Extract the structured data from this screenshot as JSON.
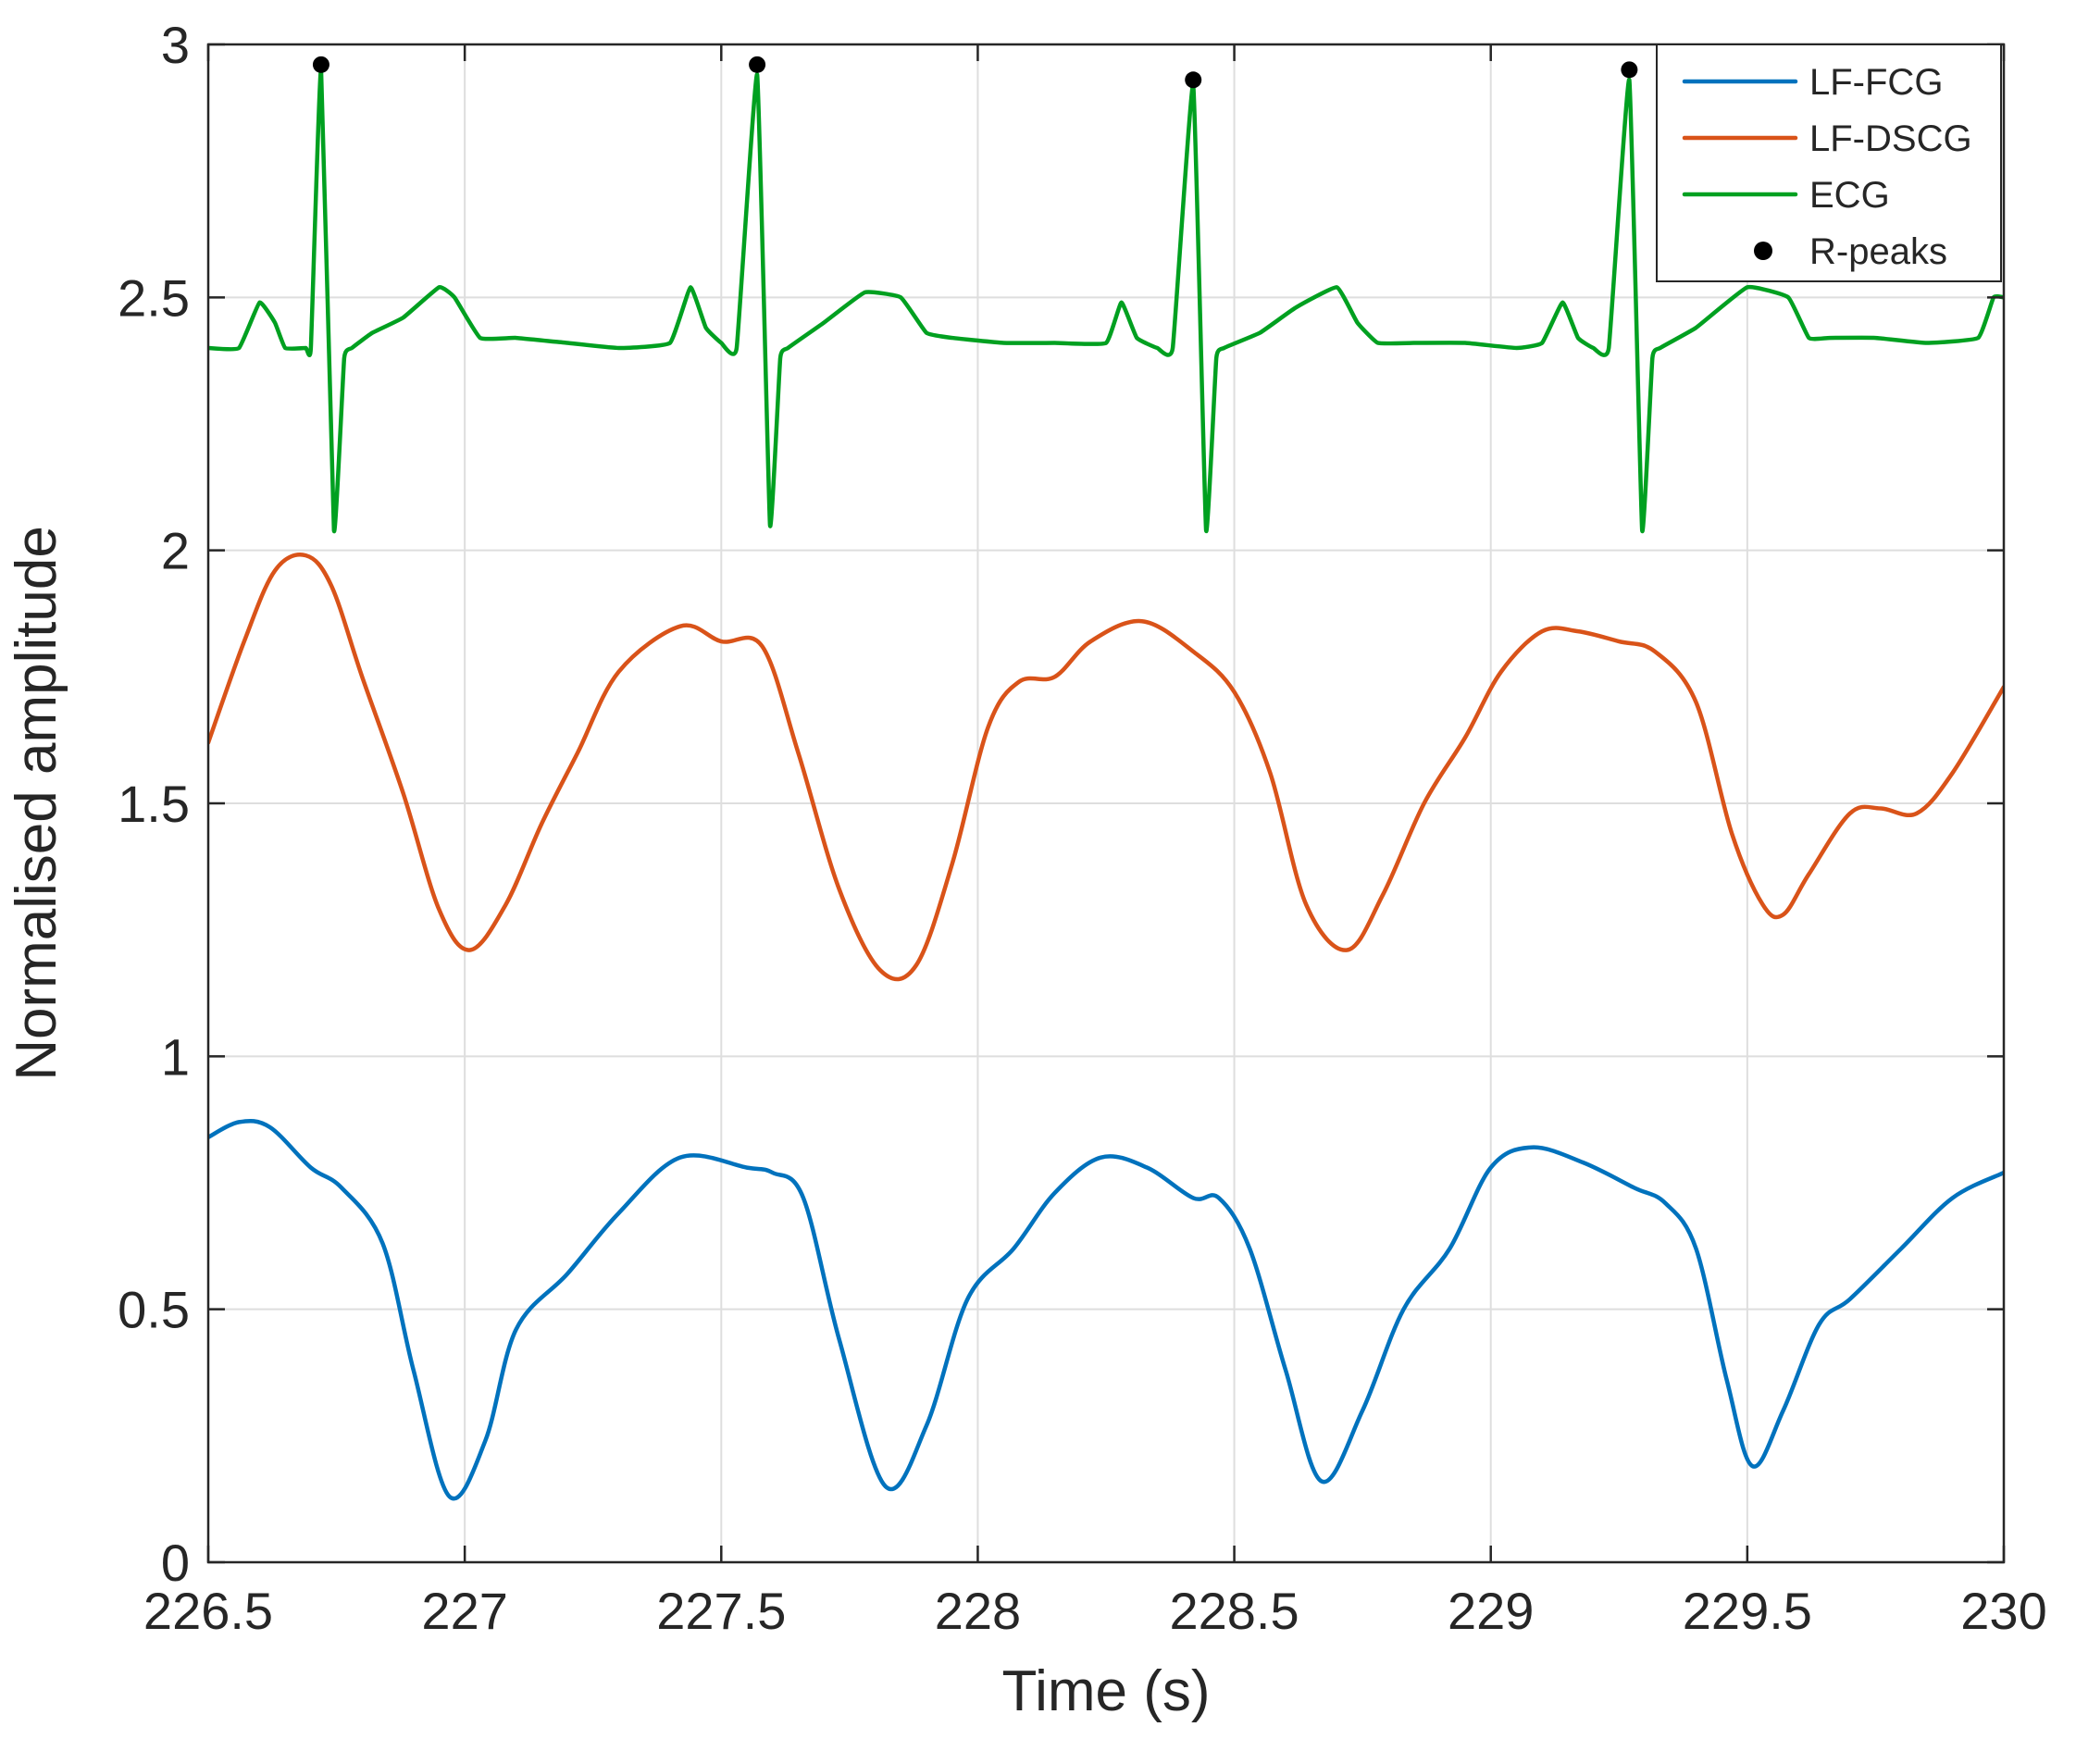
{
  "chart_data": {
    "type": "line",
    "title": "",
    "xlabel": "Time (s)",
    "ylabel": "Normalised amplitude",
    "xlim": [
      226.5,
      230
    ],
    "ylim": [
      0,
      3
    ],
    "xticks": [
      226.5,
      227,
      227.5,
      228,
      228.5,
      229,
      229.5,
      230
    ],
    "xtick_labels": [
      "226.5",
      "227",
      "227.5",
      "228",
      "228.5",
      "229",
      "229.5",
      "230"
    ],
    "yticks": [
      0,
      0.5,
      1,
      1.5,
      2,
      2.5,
      3
    ],
    "ytick_labels": [
      "0",
      "0.5",
      "1",
      "1.5",
      "2",
      "2.5",
      "3"
    ],
    "grid": true,
    "legend_position": "top-right",
    "legend": [
      "LF-FCG",
      "LF-DSCG",
      "ECG",
      "R-peaks"
    ],
    "series": [
      {
        "name": "LF-FCG",
        "color": "#0072BD",
        "x": [
          226.5,
          226.56,
          226.62,
          226.7,
          226.76,
          226.84,
          226.9,
          226.97,
          227.04,
          227.1,
          227.2,
          227.3,
          227.42,
          227.55,
          227.6,
          227.66,
          227.73,
          227.82,
          227.9,
          227.98,
          228.07,
          228.15,
          228.24,
          228.33,
          228.42,
          228.47,
          228.53,
          228.6,
          228.67,
          228.75,
          228.83,
          228.92,
          229.0,
          229.08,
          229.18,
          229.28,
          229.34,
          229.4,
          229.46,
          229.51,
          229.57,
          229.64,
          229.7,
          229.8,
          229.9,
          230.0
        ],
        "y": [
          0.84,
          0.87,
          0.86,
          0.78,
          0.74,
          0.63,
          0.38,
          0.13,
          0.24,
          0.46,
          0.57,
          0.69,
          0.8,
          0.78,
          0.77,
          0.72,
          0.44,
          0.15,
          0.27,
          0.52,
          0.62,
          0.73,
          0.8,
          0.78,
          0.72,
          0.72,
          0.62,
          0.38,
          0.16,
          0.3,
          0.5,
          0.62,
          0.78,
          0.82,
          0.79,
          0.74,
          0.71,
          0.62,
          0.36,
          0.19,
          0.3,
          0.47,
          0.52,
          0.62,
          0.72,
          0.77
        ]
      },
      {
        "name": "LF-DSCG",
        "color": "#D95319",
        "x": [
          226.5,
          226.57,
          226.63,
          226.69,
          226.74,
          226.8,
          226.88,
          226.95,
          227.01,
          227.08,
          227.15,
          227.22,
          227.3,
          227.42,
          227.5,
          227.58,
          227.65,
          227.73,
          227.81,
          227.88,
          227.95,
          228.02,
          228.08,
          228.15,
          228.22,
          228.32,
          228.42,
          228.5,
          228.57,
          228.64,
          228.72,
          228.79,
          228.87,
          228.95,
          229.02,
          229.1,
          229.17,
          229.25,
          229.32,
          229.4,
          229.47,
          229.53,
          229.57,
          229.62,
          229.7,
          229.76,
          229.83,
          229.9,
          230.0
        ],
        "y": [
          1.62,
          1.82,
          1.96,
          1.99,
          1.93,
          1.75,
          1.52,
          1.29,
          1.21,
          1.3,
          1.46,
          1.6,
          1.76,
          1.85,
          1.82,
          1.81,
          1.6,
          1.33,
          1.17,
          1.18,
          1.38,
          1.65,
          1.74,
          1.75,
          1.82,
          1.86,
          1.8,
          1.72,
          1.56,
          1.3,
          1.21,
          1.32,
          1.5,
          1.63,
          1.76,
          1.84,
          1.84,
          1.82,
          1.8,
          1.7,
          1.44,
          1.3,
          1.28,
          1.36,
          1.48,
          1.49,
          1.48,
          1.56,
          1.73
        ]
      },
      {
        "name": "ECG",
        "color": "#00A020",
        "x": [
          226.5,
          226.56,
          226.6,
          226.63,
          226.65,
          226.69,
          226.7,
          226.72,
          226.745,
          226.765,
          226.78,
          226.82,
          226.88,
          226.95,
          226.98,
          227.03,
          227.1,
          227.2,
          227.3,
          227.4,
          227.44,
          227.47,
          227.5,
          227.53,
          227.57,
          227.595,
          227.615,
          227.63,
          227.7,
          227.78,
          227.85,
          227.9,
          227.95,
          228.05,
          228.15,
          228.25,
          228.28,
          228.31,
          228.35,
          228.38,
          228.42,
          228.445,
          228.465,
          228.48,
          228.55,
          228.62,
          228.7,
          228.74,
          228.78,
          228.85,
          228.95,
          229.05,
          229.1,
          229.14,
          229.17,
          229.2,
          229.23,
          229.27,
          229.295,
          229.315,
          229.33,
          229.4,
          229.5,
          229.58,
          229.62,
          229.66,
          229.75,
          229.85,
          229.95,
          229.98,
          230.0
        ],
        "y": [
          2.4,
          2.4,
          2.49,
          2.45,
          2.4,
          2.4,
          2.4,
          2.95,
          2.04,
          2.38,
          2.4,
          2.43,
          2.46,
          2.52,
          2.5,
          2.42,
          2.42,
          2.41,
          2.4,
          2.41,
          2.52,
          2.44,
          2.41,
          2.4,
          2.94,
          2.05,
          2.38,
          2.4,
          2.45,
          2.51,
          2.5,
          2.43,
          2.42,
          2.41,
          2.41,
          2.41,
          2.49,
          2.42,
          2.4,
          2.4,
          2.92,
          2.04,
          2.38,
          2.4,
          2.43,
          2.48,
          2.52,
          2.45,
          2.41,
          2.41,
          2.41,
          2.4,
          2.41,
          2.49,
          2.42,
          2.4,
          2.4,
          2.93,
          2.04,
          2.38,
          2.4,
          2.44,
          2.52,
          2.5,
          2.42,
          2.42,
          2.42,
          2.41,
          2.42,
          2.5,
          2.5
        ]
      },
      {
        "name": "R-peaks",
        "color": "#000000",
        "marker": "dot",
        "x": [
          226.72,
          227.57,
          228.42,
          229.27
        ],
        "y": [
          2.96,
          2.96,
          2.93,
          2.95
        ]
      }
    ]
  }
}
